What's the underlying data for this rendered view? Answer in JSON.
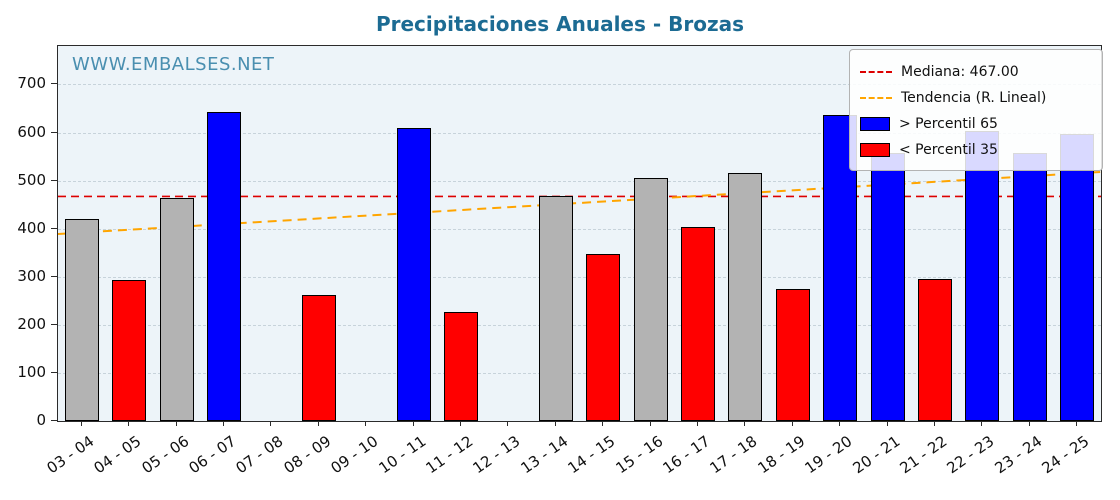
{
  "title": "Precipitaciones Anuales - Brozas",
  "watermark": "WWW.EMBALSES.NET",
  "legend": {
    "median_label": "Mediana: 467.00",
    "trend_label": "Tendencia (R. Lineal)",
    "p65_label": "> Percentil 65",
    "p35_label": "< Percentil 35"
  },
  "colors": {
    "blue": "#0000ff",
    "red": "#ff0000",
    "gray": "#b3b3b3",
    "median_line": "#dd0000",
    "trend_line": "#ffa500",
    "title": "#1c6b93",
    "watermark": "#4a8fb0",
    "plot_bg": "#edf4f9",
    "grid": "#c7d3db"
  },
  "chart_data": {
    "type": "bar",
    "title": "Precipitaciones Anuales - Brozas",
    "categories": [
      "03 - 04",
      "04 - 05",
      "05 - 06",
      "06 - 07",
      "07 - 08",
      "08 - 09",
      "09 - 10",
      "10 - 11",
      "11 - 12",
      "12 - 13",
      "13 - 14",
      "14 - 15",
      "15 - 16",
      "16 - 17",
      "17 - 18",
      "18 - 19",
      "19 - 20",
      "20 - 21",
      "21 - 22",
      "22 - 23",
      "23 - 24",
      "24 - 25"
    ],
    "values": [
      420,
      293,
      463,
      643,
      0,
      262,
      0,
      610,
      227,
      0,
      468,
      347,
      505,
      403,
      515,
      275,
      637,
      557,
      295,
      603,
      557,
      596
    ],
    "bar_classes": [
      "gray",
      "red",
      "gray",
      "blue",
      "none",
      "red",
      "none",
      "blue",
      "red",
      "none",
      "gray",
      "red",
      "gray",
      "red",
      "gray",
      "red",
      "blue",
      "blue",
      "red",
      "blue",
      "blue",
      "blue"
    ],
    "median": 467.0,
    "trend": {
      "start": 389,
      "end": 518
    },
    "ylim": [
      0,
      780
    ],
    "yticks": [
      0,
      100,
      200,
      300,
      400,
      500,
      600,
      700
    ],
    "xlabel": "",
    "ylabel": "",
    "grid": true,
    "legend_position": "upper right"
  }
}
